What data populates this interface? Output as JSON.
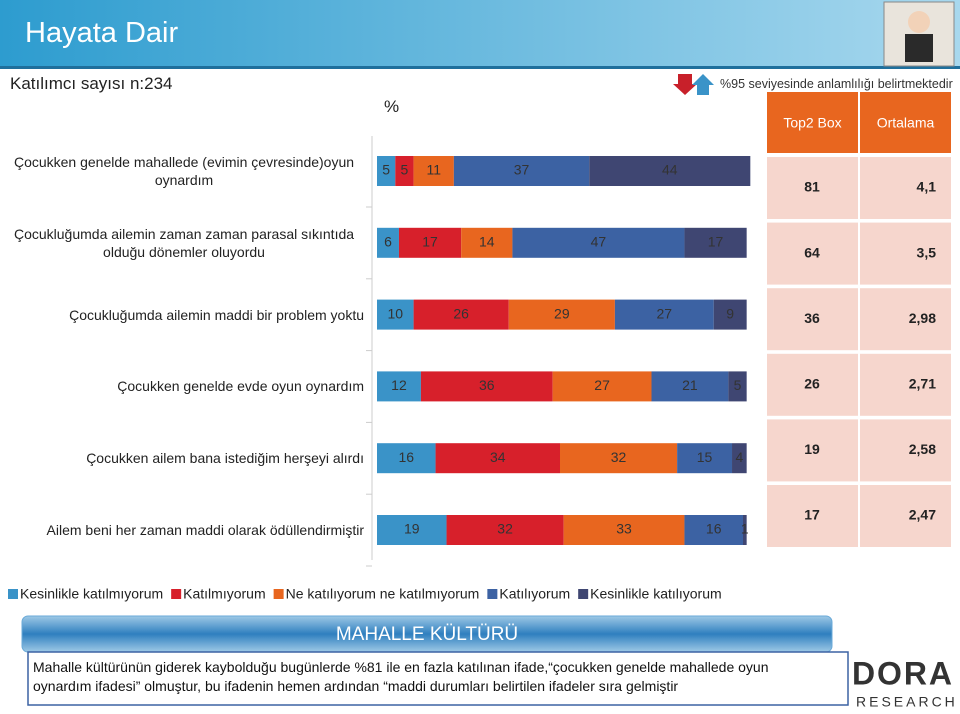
{
  "header": {
    "title": "Hayata Dair",
    "participants": "Katılımcı sayısı n:234",
    "significance_note": "%95 seviyesinde anlamlılığı belirtmektedir"
  },
  "chart_data": {
    "type": "stacked_bar",
    "value_axis_label": "%",
    "categories": [
      "Çocukken genelde mahallede (evimin çevresinde)oyun\noynardım",
      "Çocukluğumda ailemin zaman zaman parasal sıkıntıda\nolduğu dönemler oluyordu",
      "Çocukluğumda ailemin maddi bir problem yoktu",
      "Çocukken genelde evde oyun oynardım",
      "Çocukken ailem bana istediğim herşeyi alırdı",
      "Ailem beni her zaman maddi olarak ödüllendirmiştir"
    ],
    "series": [
      {
        "name": "Kesinlikle katılmıyorum",
        "color": "#3a93c8",
        "values": [
          5,
          6,
          10,
          12,
          16,
          19
        ]
      },
      {
        "name": "Katılmıyorum",
        "color": "#d7202b",
        "values": [
          5,
          17,
          26,
          36,
          34,
          32
        ]
      },
      {
        "name": "Ne katılıyorum ne katılmıyorum",
        "color": "#e8661f",
        "values": [
          11,
          14,
          29,
          27,
          32,
          33
        ]
      },
      {
        "name": "Katılıyorum",
        "color": "#3c62a3",
        "values": [
          37,
          47,
          27,
          21,
          15,
          16
        ]
      },
      {
        "name": "Kesinlikle katılıyorum",
        "color": "#3f4672",
        "values": [
          44,
          17,
          9,
          5,
          4,
          1
        ]
      }
    ]
  },
  "summary": {
    "headers": [
      "Top2 Box",
      "Ortalama"
    ],
    "rows": [
      [
        "81",
        "4,1"
      ],
      [
        "64",
        "3,5"
      ],
      [
        "36",
        "2,98"
      ],
      [
        "26",
        "2,71"
      ],
      [
        "19",
        "2,58"
      ],
      [
        "17",
        "2,47"
      ]
    ]
  },
  "callout": {
    "title": "MAHALLE KÜLTÜRÜ",
    "text": "Mahalle kültürünün giderek kaybolduğu bugünlerde %81 ile en fazla katılınan ifade,“çocukken genelde mahallede oyun oynardım ifadesi” olmuştur, bu ifadenin hemen ardından “maddi durumları belirtilen ifadeler sıra gelmiştir"
  },
  "logo": {
    "name": "DORA",
    "tagline": "RESEARCH"
  }
}
